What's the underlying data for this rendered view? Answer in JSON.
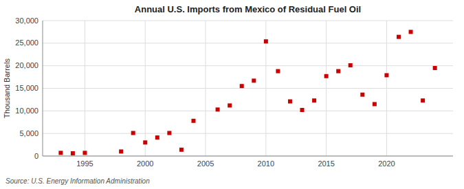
{
  "chart_data": {
    "type": "scatter",
    "title": "Annual U.S. Imports from Mexico of Residual Fuel Oil",
    "ylabel": "Thousand Barrels",
    "annotations": [
      "Source: U.S. Energy Information Administration"
    ],
    "color": "#cc0000",
    "marker": "square",
    "grid": true,
    "xlim": [
      1991.5,
      2025.5
    ],
    "ylim": [
      0,
      30000
    ],
    "xticks": [
      1995,
      2000,
      2005,
      2010,
      2015,
      2020
    ],
    "yticks": [
      0,
      {
        "value": 5000,
        "label": "5,000"
      },
      {
        "value": 10000,
        "label": "10,000"
      },
      {
        "value": 15000,
        "label": "15,000"
      },
      {
        "value": 20000,
        "label": "20,000"
      },
      {
        "value": 25000,
        "label": "25,000"
      },
      {
        "value": 30000,
        "label": "30,000"
      }
    ],
    "x": [
      1993,
      1994,
      1995,
      1998,
      1999,
      2000,
      2001,
      2002,
      2003,
      2004,
      2006,
      2007,
      2008,
      2009,
      2010,
      2011,
      2012,
      2013,
      2014,
      2015,
      2016,
      2017,
      2018,
      2019,
      2020,
      2021,
      2022,
      2023,
      2024
    ],
    "values": [
      700,
      600,
      700,
      1000,
      5100,
      3000,
      4100,
      5100,
      1400,
      7800,
      10300,
      11200,
      15500,
      16700,
      25400,
      18800,
      12100,
      10200,
      12300,
      17700,
      18800,
      20100,
      13600,
      11500,
      17900,
      26400,
      27500,
      12300,
      19500
    ]
  }
}
